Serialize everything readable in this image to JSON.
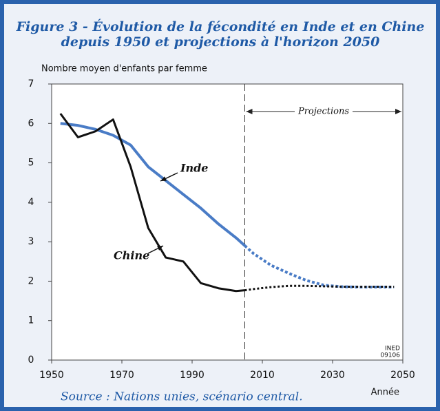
{
  "chart_data": {
    "type": "line",
    "title": [
      "Figure 3 - Évolution de la fécondité en Inde et en Chine",
      "depuis 1950 et projections à l'horizon 2050"
    ],
    "y_label": "Nombre moyen d'enfants par femme",
    "x_label": "Année",
    "credit": [
      "INED",
      "09106"
    ],
    "source": "Source : Nations unies, scénario central.",
    "x": [
      1952.5,
      1957.5,
      1962.5,
      1967.5,
      1972.5,
      1977.5,
      1982.5,
      1987.5,
      1992.5,
      1997.5,
      2002.5,
      2005,
      2007.5,
      2012.5,
      2017.5,
      2022.5,
      2027.5,
      2032.5,
      2037.5,
      2042.5,
      2047.5
    ],
    "series": [
      {
        "name": "Inde",
        "color": "#4a7cc6",
        "values": [
          6.0,
          5.95,
          5.85,
          5.7,
          5.45,
          4.9,
          4.55,
          4.2,
          3.85,
          3.45,
          3.1,
          2.9,
          2.7,
          2.4,
          2.2,
          2.02,
          1.9,
          1.86,
          1.85,
          1.85,
          1.85
        ]
      },
      {
        "name": "Chine",
        "color": "#111111",
        "values": [
          6.25,
          5.65,
          5.8,
          6.1,
          4.9,
          3.35,
          2.6,
          2.5,
          1.95,
          1.82,
          1.75,
          1.77,
          1.8,
          1.85,
          1.88,
          1.88,
          1.87,
          1.86,
          1.86,
          1.86,
          1.86
        ]
      }
    ],
    "projection": {
      "label": "Projections",
      "x": 2005
    },
    "xlim": [
      1950,
      2050
    ],
    "ylim": [
      0,
      7
    ],
    "xticks": [
      1950,
      1970,
      1990,
      2010,
      2030,
      2050
    ],
    "yticks": [
      0,
      1,
      2,
      3,
      4,
      5,
      6,
      7
    ]
  }
}
